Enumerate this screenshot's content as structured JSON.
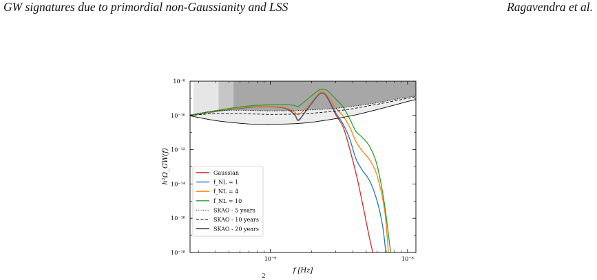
{
  "header": {
    "left": "GW signatures due to primordial non-Gaussianity and LSS",
    "right": "Ragavendra et al."
  },
  "footer_mark": "2",
  "chart_data": {
    "type": "line",
    "xlabel": "f [Hz]",
    "ylabel": "h²Ω_GW(f)",
    "xscale": "log",
    "yscale": "log",
    "xlim": [
      2.6e-10,
      1.15e-08
    ],
    "ylim": [
      1e-18,
      1e-08
    ],
    "xticks": [
      {
        "value": 1e-09,
        "label": "10⁻⁹"
      },
      {
        "value": 1e-08,
        "label": "10⁻⁸"
      }
    ],
    "yticks": [
      {
        "value": 1e-18,
        "label": "10⁻¹⁸"
      },
      {
        "value": 1e-16,
        "label": "10⁻¹⁶"
      },
      {
        "value": 1e-14,
        "label": "10⁻¹⁴"
      },
      {
        "value": 1e-12,
        "label": "10⁻¹²"
      },
      {
        "value": 1e-10,
        "label": "10⁻¹⁰"
      },
      {
        "value": 1e-08,
        "label": "10⁻⁸"
      }
    ],
    "legend_position": "lower-left",
    "excluded_bands": [
      {
        "x_from": 2.75e-10,
        "x_to": 1.15e-08,
        "color": "#e6e6e6"
      },
      {
        "x_from": 4.2e-10,
        "x_to": 1.15e-08,
        "color": "#c6c6c6"
      },
      {
        "x_from": 5.4e-10,
        "x_to": 1.15e-08,
        "color": "#a7a7a7"
      }
    ],
    "series": [
      {
        "name": "Gaussian",
        "color": "#d62728",
        "style": "solid",
        "x": [
          2.6e-10,
          4e-10,
          6e-10,
          8e-10,
          1e-09,
          1.3e-09,
          1.5e-09,
          1.6e-09,
          1.8e-09,
          2.2e-09,
          2.4e-09,
          2.6e-09,
          3e-09,
          3.4e-09,
          3.8e-09,
          4.3e-09,
          4.8e-09,
          5.3e-09,
          5.7e-09
        ],
        "y": [
          1e-10,
          1.7e-10,
          2.6e-10,
          3.2e-10,
          3.3e-10,
          2.5e-10,
          1.1e-10,
          5e-11,
          1.6e-10,
          1.3e-09,
          2e-09,
          1.1e-09,
          1.1e-10,
          2e-11,
          1e-12,
          2e-14,
          3e-16,
          6e-18,
          5e-19
        ]
      },
      {
        "name": "f_NL = 1",
        "color": "#1f77b4",
        "style": "solid",
        "x": [
          2.6e-10,
          4e-10,
          6e-10,
          8e-10,
          1e-09,
          1.3e-09,
          1.5e-09,
          1.6e-09,
          1.8e-09,
          2.2e-09,
          2.4e-09,
          2.6e-09,
          3e-09,
          3.4e-09,
          3.8e-09,
          4.2e-09,
          4.7e-09,
          5.3e-09,
          6e-09,
          6.6e-09,
          7e-09
        ],
        "y": [
          1e-10,
          1.7e-10,
          2.6e-10,
          3.2e-10,
          3.3e-10,
          2.6e-10,
          1.2e-10,
          5.5e-11,
          1.7e-10,
          1.4e-09,
          2.1e-09,
          1.2e-09,
          1.4e-10,
          3e-11,
          4e-12,
          3e-13,
          6e-14,
          1.5e-14,
          1e-15,
          3e-17,
          5e-19
        ]
      },
      {
        "name": "f_NL = 4",
        "color": "#ff7f0e",
        "style": "solid",
        "x": [
          2.6e-10,
          4e-10,
          6e-10,
          8e-10,
          1e-09,
          1.3e-09,
          1.5e-09,
          1.6e-09,
          1.8e-09,
          2.2e-09,
          2.4e-09,
          2.6e-09,
          3e-09,
          3.4e-09,
          3.8e-09,
          4.2e-09,
          4.7e-09,
          5.3e-09,
          6e-09,
          6.8e-09,
          7.3e-09
        ],
        "y": [
          1e-10,
          1.8e-10,
          2.8e-10,
          3.4e-10,
          3.5e-10,
          2.8e-10,
          1.6e-10,
          1.1e-10,
          2.5e-10,
          1.6e-09,
          2.4e-09,
          1.5e-09,
          2.7e-10,
          9e-11,
          2e-11,
          3e-12,
          8e-13,
          2.5e-13,
          3e-14,
          3e-16,
          5e-19
        ]
      },
      {
        "name": "f_NL = 10",
        "color": "#2ca02c",
        "style": "solid",
        "x": [
          2.6e-10,
          4e-10,
          6e-10,
          8e-10,
          1e-09,
          1.3e-09,
          1.5e-09,
          1.6e-09,
          1.8e-09,
          2.2e-09,
          2.4e-09,
          2.6e-09,
          3e-09,
          3.4e-09,
          3.8e-09,
          4.2e-09,
          4.7e-09,
          5.3e-09,
          6e-09,
          6.8e-09,
          7.6e-09
        ],
        "y": [
          1e-10,
          1.9e-10,
          3.1e-10,
          3.9e-10,
          4.2e-10,
          4.3e-10,
          3.8e-10,
          3.4e-10,
          7e-10,
          2.6e-09,
          3.4e-09,
          2.8e-09,
          9e-10,
          3e-10,
          6e-11,
          1.2e-11,
          5e-12,
          1.5e-12,
          1.2e-13,
          6e-16,
          5e-19
        ]
      },
      {
        "name": "SKAO - 5 years",
        "color": "#000000",
        "style": "dotted",
        "x": [
          2.6e-10,
          4e-10,
          6e-10,
          8e-10,
          1e-09,
          1.5e-09,
          2e-09,
          3e-09,
          4e-09,
          6e-09,
          8e-09,
          1e-08,
          1.15e-08
        ],
        "y": [
          1.1e-10,
          1.85e-10,
          2e-10,
          1.9e-10,
          1.85e-10,
          1.9e-10,
          2.1e-10,
          2.6e-10,
          3.4e-10,
          5.5e-10,
          8.5e-10,
          1.15e-09,
          1.4e-09
        ]
      },
      {
        "name": "SKAO - 10 years",
        "color": "#000000",
        "style": "dashed",
        "x": [
          2.6e-10,
          4e-10,
          6e-10,
          8e-10,
          1e-09,
          1.5e-09,
          2e-09,
          3e-09,
          4e-09,
          6e-09,
          8e-09,
          1e-08,
          1.15e-08
        ],
        "y": [
          1e-10,
          1.3e-10,
          1.25e-10,
          1.2e-10,
          1.15e-10,
          1.2e-10,
          1.35e-10,
          1.8e-10,
          2.5e-10,
          4.5e-10,
          7e-10,
          1e-09,
          1.25e-09
        ]
      },
      {
        "name": "SKAO - 20 years",
        "color": "#000000",
        "style": "solid",
        "x": [
          2.6e-10,
          4e-10,
          6e-10,
          8e-10,
          1e-09,
          1.5e-09,
          2e-09,
          3e-09,
          4e-09,
          6e-09,
          8e-09,
          1e-08,
          1.15e-08
        ],
        "y": [
          9.5e-11,
          5e-11,
          3.5e-11,
          3e-11,
          3e-11,
          3.3e-11,
          4e-11,
          6.5e-11,
          1e-10,
          2.2e-10,
          4e-10,
          6.5e-10,
          8.5e-10
        ]
      }
    ],
    "legend": [
      {
        "label": "Gaussian",
        "color": "#d62728",
        "style": "solid"
      },
      {
        "label": "f_NL = 1",
        "color": "#1f77b4",
        "style": "solid"
      },
      {
        "label": "f_NL = 4",
        "color": "#ff7f0e",
        "style": "solid"
      },
      {
        "label": "f_NL = 10",
        "color": "#2ca02c",
        "style": "solid"
      },
      {
        "label": "SKAO - 5 years",
        "color": "#000000",
        "style": "dotted"
      },
      {
        "label": "SKAO - 10 years",
        "color": "#000000",
        "style": "dashed"
      },
      {
        "label": "SKAO - 20 years",
        "color": "#000000",
        "style": "solid"
      }
    ]
  }
}
